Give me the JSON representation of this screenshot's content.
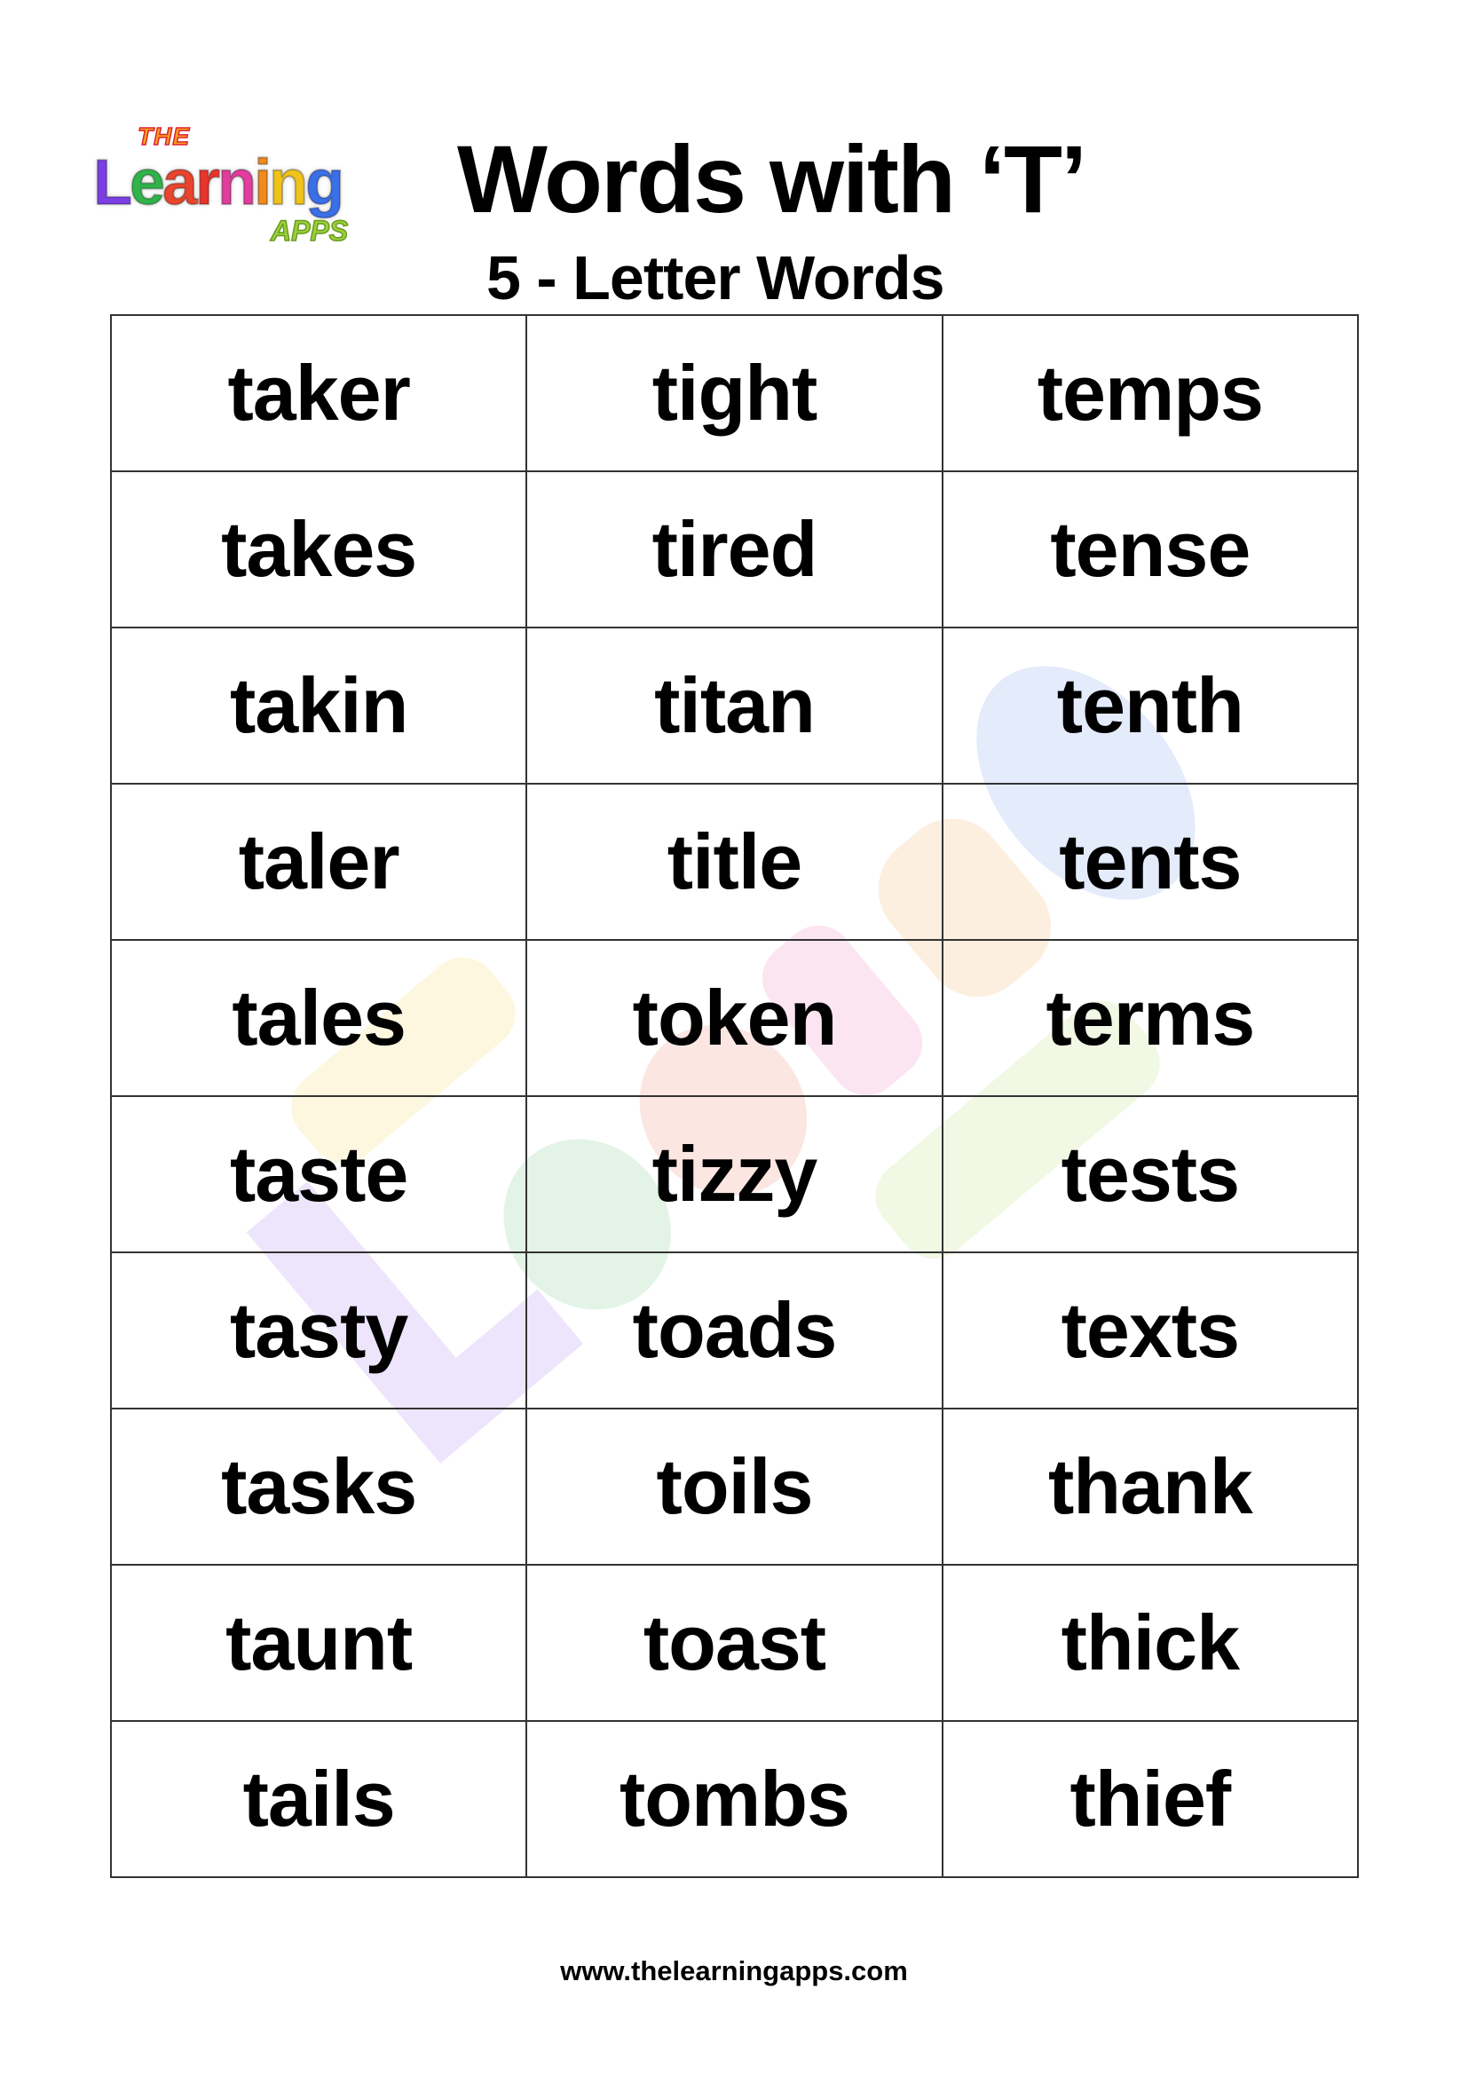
{
  "logo": {
    "the": "THE",
    "learning": "Learning",
    "apps": "APPS",
    "letter_colors": [
      "#7b3fe4",
      "#2fb34a",
      "#e8452c",
      "#e8342c",
      "#e23c9c",
      "#f08a1c",
      "#f0c31a",
      "#3a6fe8"
    ]
  },
  "header": {
    "title": "Words with ‘T’",
    "subtitle": "5 - Letter Words"
  },
  "table": {
    "rows": [
      [
        "taker",
        "tight",
        "temps"
      ],
      [
        "takes",
        "tired",
        "tense"
      ],
      [
        "takin",
        "titan",
        "tenth"
      ],
      [
        "taler",
        "title",
        "tents"
      ],
      [
        "tales",
        "token",
        "terms"
      ],
      [
        "taste",
        "tizzy",
        "tests"
      ],
      [
        "tasty",
        "toads",
        "texts"
      ],
      [
        "tasks",
        "toils",
        "thank"
      ],
      [
        "taunt",
        "toast",
        "thick"
      ],
      [
        "tails",
        "tombs",
        "thief"
      ]
    ]
  },
  "footer": {
    "url": "www.thelearningapps.com"
  }
}
